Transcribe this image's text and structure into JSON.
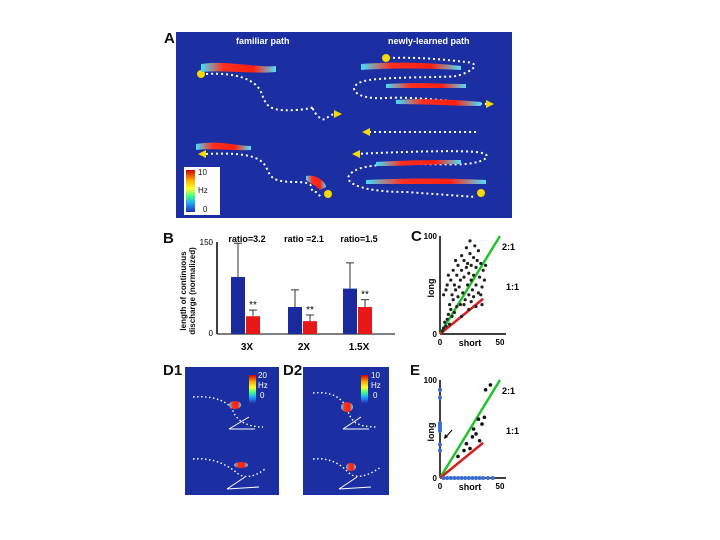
{
  "figure": {
    "panel_a": {
      "letter": "A",
      "left_title": "familiar path",
      "right_title": "newly-learned path",
      "colorbar": {
        "max": "10",
        "unit": "Hz",
        "min": "0"
      }
    },
    "panel_b": {
      "letter": "B",
      "ylabel_line1": "length of continuous",
      "ylabel_line2": "discharge (normalized)",
      "yticks": [
        "150",
        "0"
      ]
    },
    "panel_c": {
      "letter": "C",
      "line_labels": [
        "2:1",
        "1:1"
      ]
    },
    "panel_d1": {
      "letter": "D1",
      "colorbar": {
        "max": "20",
        "unit": "Hz",
        "min": "0"
      }
    },
    "panel_d2": {
      "letter": "D2",
      "colorbar": {
        "max": "10",
        "unit": "Hz",
        "min": "0"
      }
    },
    "panel_e": {
      "letter": "E",
      "line_labels": [
        "2:1",
        "1:1"
      ]
    },
    "colors": {
      "map_bg": "#1b2fa3",
      "path": "#ffffff",
      "marker": "#f5d800",
      "fit_green": "#22c32a",
      "fit_red": "#d42020",
      "bar_blue": "#1a2a9c",
      "bar_red": "#e81818"
    }
  },
  "chart_data": [
    {
      "panel": "B",
      "type": "bar",
      "ylabel": "length of continuous discharge (normalized)",
      "ylim": [
        0,
        150
      ],
      "yticks": [
        150,
        0
      ],
      "categories": [
        "3X",
        "2X",
        "1.5X"
      ],
      "ratios": [
        "ratio=3.2",
        "ratio =2.1",
        "ratio=1.5"
      ],
      "significance": [
        "**",
        "**",
        "**"
      ],
      "series": [
        {
          "name": "blue",
          "values": [
            93,
            44,
            74
          ],
          "errors": [
            55,
            28,
            42
          ]
        },
        {
          "name": "red",
          "values": [
            29,
            21,
            44
          ],
          "errors": [
            10,
            10,
            12
          ]
        }
      ]
    },
    {
      "panel": "C",
      "type": "scatter",
      "xlabel": "short",
      "ylabel": "long",
      "xlim": [
        0,
        50
      ],
      "ylim": [
        0,
        100
      ],
      "xticks": [
        0,
        50
      ],
      "yticks": [
        100,
        0
      ],
      "lines": [
        {
          "label": "2:1",
          "slope": 2
        },
        {
          "label": "1:1",
          "slope": 1
        }
      ],
      "points": [
        [
          2,
          3
        ],
        [
          3,
          6
        ],
        [
          4,
          12
        ],
        [
          5,
          8
        ],
        [
          6,
          15
        ],
        [
          7,
          20
        ],
        [
          8,
          10
        ],
        [
          8,
          30
        ],
        [
          9,
          25
        ],
        [
          10,
          18
        ],
        [
          10,
          40
        ],
        [
          11,
          35
        ],
        [
          12,
          22
        ],
        [
          12,
          50
        ],
        [
          13,
          45
        ],
        [
          14,
          28
        ],
        [
          14,
          60
        ],
        [
          15,
          38
        ],
        [
          15,
          70
        ],
        [
          16,
          48
        ],
        [
          17,
          30
        ],
        [
          17,
          55
        ],
        [
          18,
          65
        ],
        [
          18,
          80
        ],
        [
          19,
          42
        ],
        [
          20,
          58
        ],
        [
          20,
          75
        ],
        [
          21,
          35
        ],
        [
          22,
          68
        ],
        [
          22,
          88
        ],
        [
          23,
          50
        ],
        [
          23,
          72
        ],
        [
          24,
          40
        ],
        [
          24,
          62
        ],
        [
          25,
          82
        ],
        [
          25,
          95
        ],
        [
          26,
          55
        ],
        [
          26,
          70
        ],
        [
          27,
          45
        ],
        [
          28,
          60
        ],
        [
          28,
          78
        ],
        [
          29,
          90
        ],
        [
          30,
          50
        ],
        [
          30,
          68
        ],
        [
          31,
          75
        ],
        [
          32,
          42
        ],
        [
          32,
          85
        ],
        [
          33,
          58
        ],
        [
          34,
          72
        ],
        [
          35,
          48
        ],
        [
          36,
          65
        ],
        [
          37,
          55
        ],
        [
          38,
          70
        ],
        [
          5,
          45
        ],
        [
          7,
          60
        ],
        [
          9,
          55
        ],
        [
          11,
          65
        ],
        [
          13,
          75
        ],
        [
          3,
          40
        ],
        [
          6,
          50
        ],
        [
          20,
          30
        ],
        [
          26,
          33
        ],
        [
          24,
          25
        ],
        [
          18,
          18
        ],
        [
          28,
          38
        ],
        [
          30,
          28
        ],
        [
          34,
          40
        ],
        [
          35,
          30
        ]
      ]
    },
    {
      "panel": "E",
      "type": "scatter",
      "xlabel": "short",
      "ylabel": "long",
      "xlim": [
        0,
        50
      ],
      "ylim": [
        0,
        100
      ],
      "xticks": [
        0,
        50
      ],
      "yticks": [
        100,
        0
      ],
      "lines": [
        {
          "label": "2:1",
          "slope": 2
        },
        {
          "label": "1:1",
          "slope": 1
        }
      ],
      "black_points": [
        [
          15,
          22
        ],
        [
          20,
          28
        ],
        [
          22,
          35
        ],
        [
          25,
          30
        ],
        [
          27,
          42
        ],
        [
          28,
          50
        ],
        [
          30,
          45
        ],
        [
          32,
          60
        ],
        [
          33,
          38
        ],
        [
          35,
          55
        ],
        [
          37,
          62
        ],
        [
          38,
          90
        ],
        [
          42,
          95
        ]
      ],
      "blue_points": [
        [
          0,
          90
        ],
        [
          0,
          82
        ],
        [
          0,
          56
        ],
        [
          0,
          54
        ],
        [
          0,
          52
        ],
        [
          0,
          50
        ],
        [
          0,
          48
        ],
        [
          0,
          34
        ],
        [
          0,
          28
        ],
        [
          3,
          0
        ],
        [
          6,
          0
        ],
        [
          9,
          0
        ],
        [
          12,
          0
        ],
        [
          15,
          0
        ],
        [
          18,
          0
        ],
        [
          21,
          0
        ],
        [
          24,
          0
        ],
        [
          27,
          0
        ],
        [
          30,
          0
        ],
        [
          33,
          0
        ],
        [
          36,
          0
        ],
        [
          40,
          0
        ],
        [
          44,
          0
        ]
      ]
    }
  ]
}
